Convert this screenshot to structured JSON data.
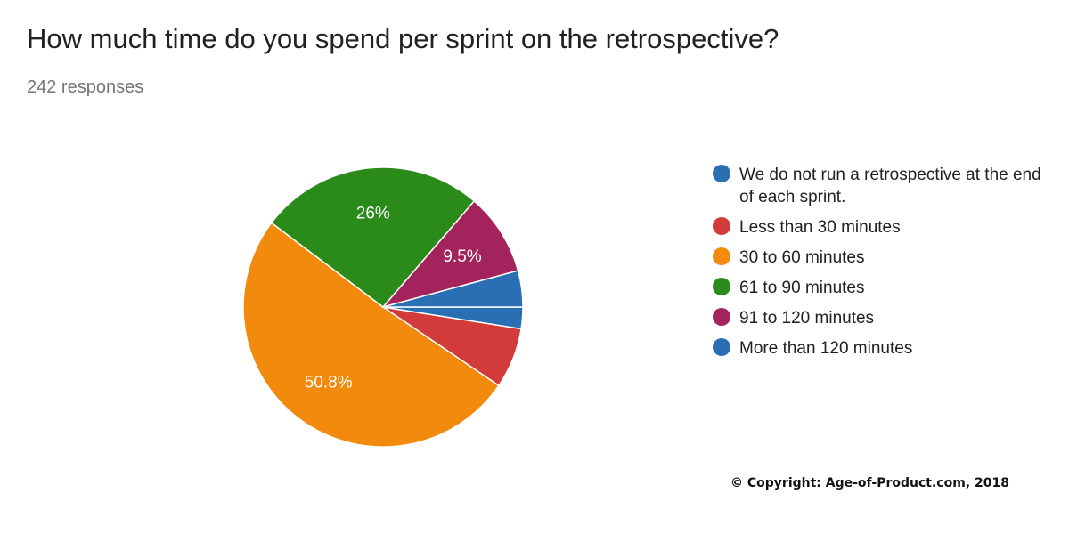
{
  "chart_data": {
    "type": "pie",
    "title": "How much time do you spend per sprint on the retrospective?",
    "subtitle": "242 responses",
    "legend_position": "right",
    "slices": [
      {
        "label": "We do not run a retrospective at the end of each sprint.",
        "value": 2.5,
        "color": "#2a6fb3",
        "display": ""
      },
      {
        "label": "Less than 30 minutes",
        "value": 7.0,
        "color": "#d33a3a",
        "display": ""
      },
      {
        "label": "30 to 60 minutes",
        "value": 50.8,
        "color": "#f28a0d",
        "display": "50.8%"
      },
      {
        "label": "61 to 90 minutes",
        "value": 26.0,
        "color": "#2a8a1a",
        "display": "26%"
      },
      {
        "label": "91 to 120 minutes",
        "value": 9.5,
        "color": "#a3235c",
        "display": "9.5%"
      },
      {
        "label": "More than 120 minutes",
        "value": 4.2,
        "color": "#2a6fb3",
        "display": ""
      }
    ]
  },
  "footer": {
    "copyright": "© Copyright: Age-of-Product.com, 2018"
  }
}
